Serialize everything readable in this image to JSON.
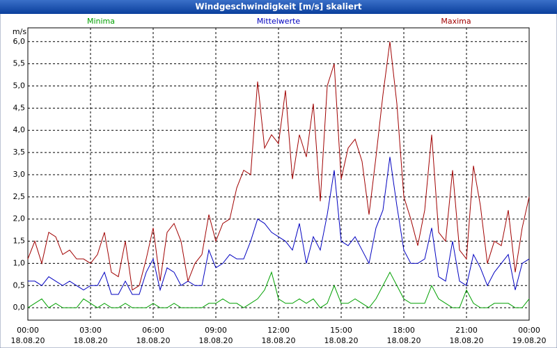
{
  "chart_data": {
    "type": "line",
    "title": "Windgeschwindigkeit [m/s] skaliert",
    "y_label": "m/s",
    "x": [
      0,
      20,
      40,
      60,
      80,
      100,
      120,
      140,
      160,
      180,
      200,
      220,
      240,
      260,
      280,
      300,
      320,
      340,
      360,
      380,
      400,
      420,
      440,
      460,
      480,
      500,
      520,
      540,
      560,
      580,
      600,
      620,
      640,
      660,
      680,
      700,
      720,
      740,
      760,
      780,
      800,
      820,
      840,
      860,
      880,
      900,
      920,
      940,
      960,
      980,
      1000,
      1020,
      1040,
      1060,
      1080,
      1100,
      1120,
      1140,
      1160,
      1180,
      1200,
      1220,
      1240,
      1260,
      1280,
      1300,
      1320,
      1340,
      1360,
      1380,
      1400,
      1420,
      1440
    ],
    "series": [
      {
        "name": "Minima",
        "color": "#00a000",
        "values": [
          0.0,
          0.1,
          0.2,
          0.0,
          0.1,
          0.0,
          0.0,
          0.0,
          0.2,
          0.1,
          0.0,
          0.1,
          0.0,
          0.0,
          0.1,
          0.0,
          0.0,
          0.0,
          0.1,
          0.0,
          0.0,
          0.1,
          0.0,
          0.0,
          0.0,
          0.0,
          0.1,
          0.1,
          0.2,
          0.1,
          0.1,
          0.0,
          0.1,
          0.2,
          0.4,
          0.8,
          0.2,
          0.1,
          0.1,
          0.2,
          0.1,
          0.2,
          0.0,
          0.1,
          0.5,
          0.1,
          0.1,
          0.2,
          0.1,
          0.0,
          0.2,
          0.5,
          0.8,
          0.5,
          0.2,
          0.1,
          0.1,
          0.1,
          0.5,
          0.2,
          0.1,
          0.0,
          0.0,
          0.4,
          0.1,
          0.0,
          0.0,
          0.1,
          0.1,
          0.1,
          0.0,
          0.0,
          0.2
        ]
      },
      {
        "name": "Mittelwerte",
        "color": "#0000c0",
        "values": [
          0.6,
          0.6,
          0.5,
          0.7,
          0.6,
          0.5,
          0.6,
          0.5,
          0.4,
          0.5,
          0.5,
          0.8,
          0.3,
          0.3,
          0.6,
          0.3,
          0.3,
          0.8,
          1.1,
          0.4,
          0.9,
          0.8,
          0.5,
          0.6,
          0.5,
          0.5,
          1.3,
          0.9,
          1.0,
          1.2,
          1.1,
          1.1,
          1.5,
          2.0,
          1.9,
          1.7,
          1.6,
          1.5,
          1.3,
          1.9,
          1.0,
          1.6,
          1.3,
          2.1,
          3.1,
          1.5,
          1.4,
          1.6,
          1.3,
          1.0,
          1.8,
          2.2,
          3.4,
          2.3,
          1.3,
          1.0,
          1.0,
          1.1,
          1.8,
          0.7,
          0.6,
          1.5,
          0.6,
          0.5,
          1.2,
          0.9,
          0.5,
          0.8,
          1.0,
          1.2,
          0.4,
          1.0,
          1.1
        ]
      },
      {
        "name": "Maxima",
        "color": "#a00000",
        "values": [
          1.1,
          1.5,
          1.0,
          1.7,
          1.6,
          1.2,
          1.3,
          1.1,
          1.1,
          1.0,
          1.2,
          1.7,
          0.8,
          0.7,
          1.5,
          0.4,
          0.5,
          1.1,
          1.8,
          0.6,
          1.7,
          1.9,
          1.5,
          0.6,
          1.0,
          1.2,
          2.1,
          1.5,
          1.9,
          2.0,
          2.7,
          3.1,
          3.0,
          5.1,
          3.6,
          3.9,
          3.7,
          4.9,
          2.9,
          3.9,
          3.4,
          4.6,
          2.4,
          5.0,
          5.5,
          2.9,
          3.6,
          3.8,
          3.3,
          2.1,
          3.4,
          4.8,
          6.0,
          4.6,
          2.5,
          2.0,
          1.4,
          2.2,
          3.9,
          1.7,
          1.5,
          3.1,
          1.3,
          1.1,
          3.2,
          2.3,
          1.0,
          1.5,
          1.4,
          2.2,
          0.8,
          1.8,
          2.5
        ]
      }
    ],
    "xlim": [
      0,
      1440
    ],
    "xticks": [
      {
        "value": 0,
        "label": "00:00",
        "date": "18.08.20"
      },
      {
        "value": 180,
        "label": "03:00",
        "date": "18.08.20"
      },
      {
        "value": 360,
        "label": "06:00",
        "date": "18.08.20"
      },
      {
        "value": 540,
        "label": "09:00",
        "date": "18.08.20"
      },
      {
        "value": 720,
        "label": "12:00",
        "date": "18.08.20"
      },
      {
        "value": 900,
        "label": "15:00",
        "date": "18.08.20"
      },
      {
        "value": 1080,
        "label": "18:00",
        "date": "18.08.20"
      },
      {
        "value": 1260,
        "label": "21:00",
        "date": "18.08.20"
      },
      {
        "value": 1440,
        "label": "00:00",
        "date": "19.08.20"
      }
    ],
    "ylim": [
      -0.28,
      6.31
    ],
    "yticks": [
      {
        "value": 0,
        "label": "0,0"
      },
      {
        "value": 0.5,
        "label": "0,5"
      },
      {
        "value": 1,
        "label": "1,0"
      },
      {
        "value": 1.5,
        "label": "1,5"
      },
      {
        "value": 2,
        "label": "2,0"
      },
      {
        "value": 2.5,
        "label": "2,5"
      },
      {
        "value": 3,
        "label": "3,0"
      },
      {
        "value": 3.5,
        "label": "3,5"
      },
      {
        "value": 4,
        "label": "4,0"
      },
      {
        "value": 4.5,
        "label": "4,5"
      },
      {
        "value": 5,
        "label": "5,0"
      },
      {
        "value": 5.5,
        "label": "5,5"
      },
      {
        "value": 6,
        "label": "6,0"
      }
    ],
    "grid": true
  }
}
